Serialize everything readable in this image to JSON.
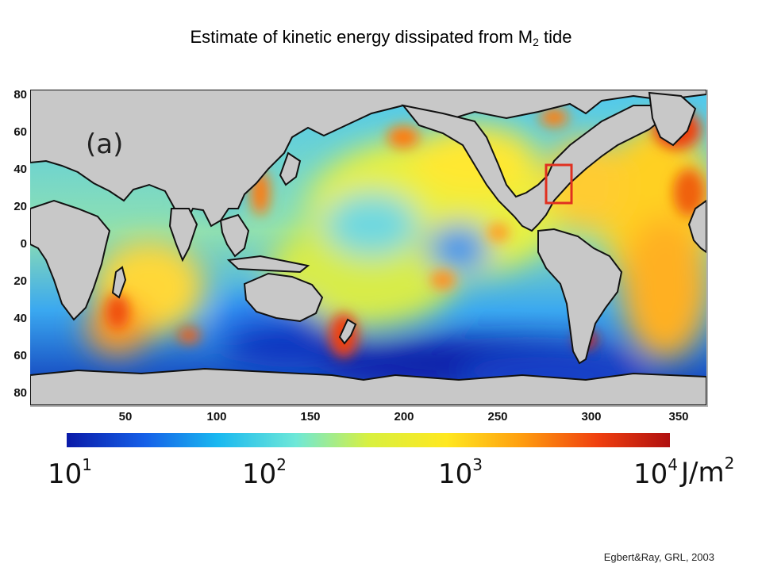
{
  "title": {
    "main": "Estimate of kinetic energy dissipated from M",
    "subscript": "2",
    "suffix": " tide"
  },
  "panel_label": "(a)",
  "latitude_ticks": [
    "80",
    "60",
    "40",
    "20",
    "0",
    "20",
    "40",
    "60",
    "80"
  ],
  "longitude_ticks": [
    "50",
    "100",
    "150",
    "200",
    "250",
    "300",
    "350"
  ],
  "colorbar": {
    "scale": "log",
    "ticks": [
      {
        "base": "10",
        "exp": "1"
      },
      {
        "base": "10",
        "exp": "2"
      },
      {
        "base": "10",
        "exp": "3"
      },
      {
        "base": "10",
        "exp": "4"
      }
    ],
    "unit_base": "J/m",
    "unit_exp": "2",
    "colors": [
      "#0a1aa8",
      "#1560e8",
      "#19b8f0",
      "#6ee8d8",
      "#d8f040",
      "#ffe820",
      "#ffa010",
      "#f04010",
      "#b01010"
    ]
  },
  "highlight_color": "#e03020",
  "credit": "Egbert&Ray, GRL, 2003"
}
